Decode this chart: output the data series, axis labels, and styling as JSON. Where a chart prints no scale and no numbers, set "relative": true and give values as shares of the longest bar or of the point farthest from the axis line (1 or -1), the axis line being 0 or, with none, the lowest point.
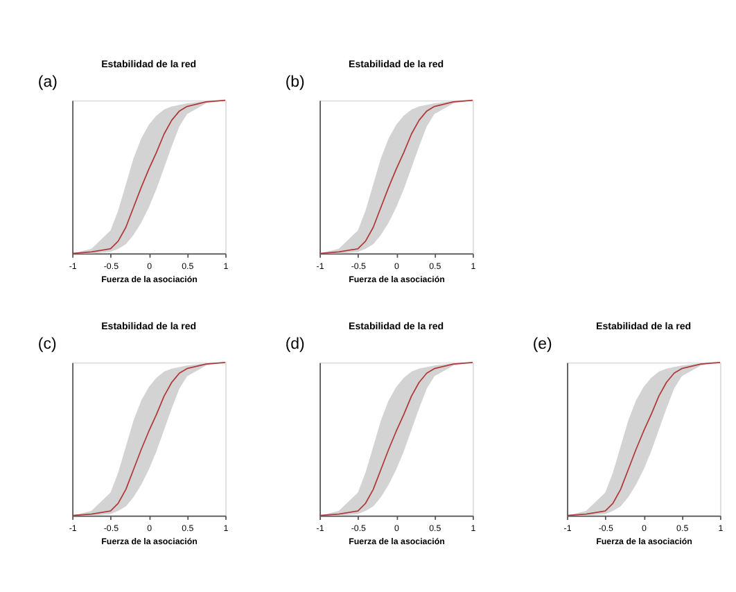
{
  "chart_data": [
    {
      "type": "line",
      "title": "Estabilidad de la red",
      "xlabel": "Fuerza de la asociación",
      "annotations": [
        "(a)"
      ],
      "relative": true,
      "tick_labels": "x",
      "grid": false,
      "marker": "none",
      "line_style": "solid",
      "xlim": [
        -1,
        1
      ],
      "xticks": [
        -1,
        -0.5,
        0,
        0.5,
        1
      ],
      "x": [
        -1,
        -0.75,
        -0.5,
        -0.4,
        -0.3,
        -0.2,
        -0.1,
        0,
        0.1,
        0.2,
        0.3,
        0.4,
        0.5,
        0.75,
        1
      ],
      "series": [
        {
          "color": "#b03a3a",
          "values": [
            0,
            0.01,
            0.03,
            0.08,
            0.17,
            0.3,
            0.43,
            0.55,
            0.66,
            0.78,
            0.87,
            0.93,
            0.96,
            0.99,
            1
          ],
          "lower": [
            0,
            0,
            0.01,
            0.03,
            0.06,
            0.12,
            0.2,
            0.3,
            0.42,
            0.56,
            0.7,
            0.83,
            0.91,
            0.98,
            1
          ],
          "upper": [
            0,
            0.03,
            0.15,
            0.28,
            0.45,
            0.62,
            0.75,
            0.84,
            0.9,
            0.94,
            0.96,
            0.97,
            0.98,
            0.995,
            1
          ]
        }
      ]
    },
    {
      "type": "line",
      "title": "Estabilidad de la red",
      "xlabel": "Fuerza de la asociación",
      "annotations": [
        "(b)"
      ],
      "relative": true,
      "tick_labels": "x",
      "grid": false,
      "marker": "none",
      "line_style": "solid",
      "xlim": [
        -1,
        1
      ],
      "xticks": [
        -1,
        -0.5,
        0,
        0.5,
        1
      ],
      "x": [
        -1,
        -0.75,
        -0.5,
        -0.4,
        -0.3,
        -0.2,
        -0.1,
        0,
        0.1,
        0.2,
        0.3,
        0.4,
        0.5,
        0.75,
        1
      ],
      "series": [
        {
          "color": "#b03a3a",
          "values": [
            0,
            0.01,
            0.03,
            0.08,
            0.17,
            0.3,
            0.43,
            0.55,
            0.66,
            0.78,
            0.87,
            0.93,
            0.96,
            0.99,
            1
          ],
          "lower": [
            0,
            0,
            0.01,
            0.03,
            0.06,
            0.12,
            0.2,
            0.3,
            0.42,
            0.56,
            0.7,
            0.83,
            0.91,
            0.98,
            1
          ],
          "upper": [
            0,
            0.03,
            0.15,
            0.28,
            0.45,
            0.62,
            0.75,
            0.84,
            0.9,
            0.94,
            0.96,
            0.97,
            0.98,
            0.995,
            1
          ]
        }
      ]
    },
    {
      "type": "line",
      "title": "Estabilidad de la red",
      "xlabel": "Fuerza de la asociación",
      "annotations": [
        "(c)"
      ],
      "relative": true,
      "tick_labels": "x",
      "grid": false,
      "marker": "none",
      "line_style": "solid",
      "xlim": [
        -1,
        1
      ],
      "xticks": [
        -1,
        -0.5,
        0,
        0.5,
        1
      ],
      "x": [
        -1,
        -0.75,
        -0.5,
        -0.4,
        -0.3,
        -0.2,
        -0.1,
        0,
        0.1,
        0.2,
        0.3,
        0.4,
        0.5,
        0.75,
        1
      ],
      "series": [
        {
          "color": "#b03a3a",
          "values": [
            0,
            0.01,
            0.03,
            0.08,
            0.17,
            0.3,
            0.43,
            0.55,
            0.66,
            0.78,
            0.87,
            0.93,
            0.96,
            0.99,
            1
          ],
          "lower": [
            0,
            0,
            0.01,
            0.03,
            0.06,
            0.12,
            0.2,
            0.3,
            0.42,
            0.56,
            0.7,
            0.83,
            0.91,
            0.98,
            1
          ],
          "upper": [
            0,
            0.03,
            0.15,
            0.28,
            0.45,
            0.62,
            0.75,
            0.84,
            0.9,
            0.94,
            0.96,
            0.97,
            0.98,
            0.995,
            1
          ]
        }
      ]
    },
    {
      "type": "line",
      "title": "Estabilidad de la red",
      "xlabel": "Fuerza de la asociación",
      "annotations": [
        "(d)"
      ],
      "relative": true,
      "tick_labels": "x",
      "grid": false,
      "marker": "none",
      "line_style": "solid",
      "xlim": [
        -1,
        1
      ],
      "xticks": [
        -1,
        -0.5,
        0,
        0.5,
        1
      ],
      "x": [
        -1,
        -0.75,
        -0.5,
        -0.4,
        -0.3,
        -0.2,
        -0.1,
        0,
        0.1,
        0.2,
        0.3,
        0.4,
        0.5,
        0.75,
        1
      ],
      "series": [
        {
          "color": "#b03a3a",
          "values": [
            0,
            0.01,
            0.03,
            0.08,
            0.17,
            0.3,
            0.43,
            0.55,
            0.66,
            0.78,
            0.87,
            0.93,
            0.96,
            0.99,
            1
          ],
          "lower": [
            0,
            0,
            0.01,
            0.03,
            0.06,
            0.12,
            0.2,
            0.3,
            0.42,
            0.56,
            0.7,
            0.83,
            0.91,
            0.98,
            1
          ],
          "upper": [
            0,
            0.03,
            0.15,
            0.28,
            0.45,
            0.62,
            0.75,
            0.84,
            0.9,
            0.94,
            0.96,
            0.97,
            0.98,
            0.995,
            1
          ]
        }
      ]
    },
    {
      "type": "line",
      "title": "Estabilidad de la red",
      "xlabel": "Fuerza de la asociación",
      "annotations": [
        "(e)"
      ],
      "relative": true,
      "tick_labels": "x",
      "grid": false,
      "marker": "none",
      "line_style": "solid",
      "xlim": [
        -1,
        1
      ],
      "xticks": [
        -1,
        -0.5,
        0,
        0.5,
        1
      ],
      "x": [
        -1,
        -0.75,
        -0.5,
        -0.4,
        -0.3,
        -0.2,
        -0.1,
        0,
        0.1,
        0.2,
        0.3,
        0.4,
        0.5,
        0.75,
        1
      ],
      "series": [
        {
          "color": "#b03a3a",
          "values": [
            0,
            0.01,
            0.03,
            0.08,
            0.17,
            0.3,
            0.43,
            0.55,
            0.66,
            0.78,
            0.87,
            0.93,
            0.96,
            0.99,
            1
          ],
          "lower": [
            0,
            0,
            0.01,
            0.03,
            0.06,
            0.12,
            0.2,
            0.3,
            0.42,
            0.56,
            0.7,
            0.83,
            0.91,
            0.98,
            1
          ],
          "upper": [
            0,
            0.03,
            0.15,
            0.28,
            0.45,
            0.62,
            0.75,
            0.84,
            0.9,
            0.94,
            0.96,
            0.97,
            0.98,
            0.995,
            1
          ]
        }
      ]
    }
  ]
}
